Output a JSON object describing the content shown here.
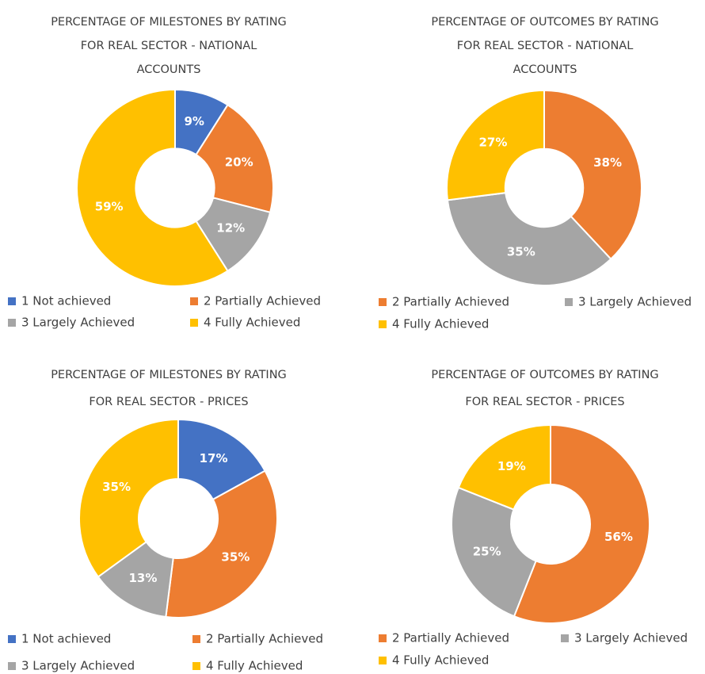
{
  "chart_data": [
    {
      "type": "doughnut",
      "title": [
        "PERCENTAGE OF MILESTONES BY RATING",
        "FOR REAL SECTOR - NATIONAL",
        "ACCOUNTS"
      ],
      "categories": [
        "1 Not achieved",
        "2 Partially Achieved",
        "3 Largely Achieved",
        "4 Fully Achieved"
      ],
      "values": [
        9,
        20,
        12,
        59
      ],
      "value_labels": [
        "9%",
        "20%",
        "12%",
        "59%"
      ],
      "colors": [
        "#4472c4",
        "#ed7d31",
        "#a5a5a5",
        "#ffc000"
      ]
    },
    {
      "type": "doughnut",
      "title": [
        "PERCENTAGE OF OUTCOMES BY RATING",
        "FOR REAL SECTOR - NATIONAL",
        "ACCOUNTS"
      ],
      "categories": [
        "2 Partially Achieved",
        "3 Largely Achieved",
        "4 Fully Achieved"
      ],
      "values": [
        38,
        35,
        27
      ],
      "value_labels": [
        "38%",
        "35%",
        "27%"
      ],
      "colors": [
        "#ed7d31",
        "#a5a5a5",
        "#ffc000"
      ]
    },
    {
      "type": "doughnut",
      "title": [
        "PERCENTAGE OF MILESTONES BY RATING",
        "FOR REAL SECTOR - PRICES"
      ],
      "categories": [
        "1 Not achieved",
        "2 Partially Achieved",
        "3 Largely Achieved",
        "4 Fully Achieved"
      ],
      "values": [
        17,
        35,
        13,
        35
      ],
      "value_labels": [
        "17%",
        "35%",
        "13%",
        "35%"
      ],
      "colors": [
        "#4472c4",
        "#ed7d31",
        "#a5a5a5",
        "#ffc000"
      ]
    },
    {
      "type": "doughnut",
      "title": [
        "PERCENTAGE OF OUTCOMES BY RATING",
        "FOR REAL SECTOR - PRICES"
      ],
      "categories": [
        "2 Partially Achieved",
        "3 Largely Achieved",
        "4 Fully Achieved"
      ],
      "values": [
        56,
        25,
        19
      ],
      "value_labels": [
        "56%",
        "25%",
        "19%"
      ],
      "colors": [
        "#ed7d31",
        "#a5a5a5",
        "#ffc000"
      ]
    }
  ]
}
